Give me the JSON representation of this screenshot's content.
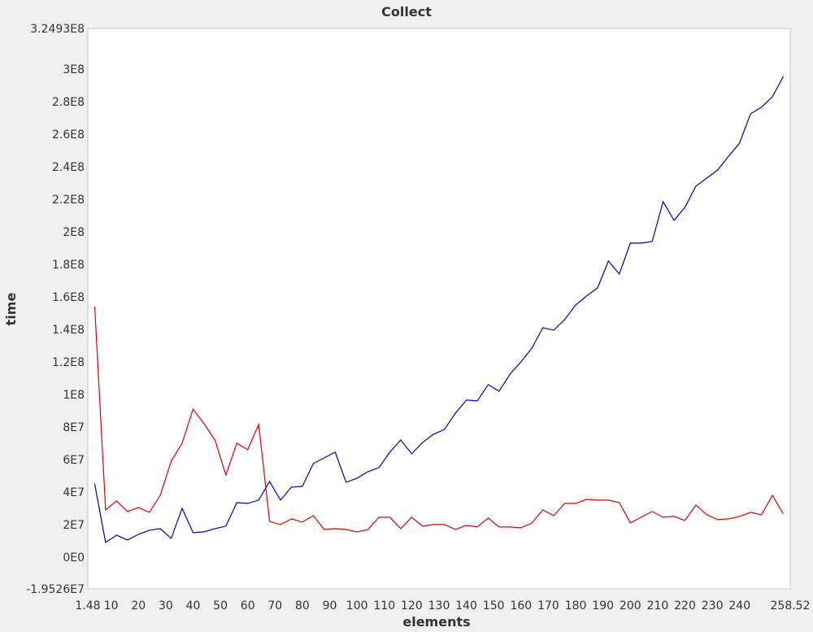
{
  "chart_data": {
    "type": "line",
    "title": "Collect",
    "xlabel": "elements",
    "ylabel": "time",
    "xlim": [
      1.48,
      258.52
    ],
    "ylim": [
      -19526000,
      324930000
    ],
    "x_ticks": [
      1.48,
      10,
      20,
      30,
      40,
      50,
      60,
      70,
      80,
      90,
      100,
      110,
      120,
      130,
      140,
      150,
      160,
      170,
      180,
      190,
      200,
      210,
      220,
      230,
      240,
      258.52
    ],
    "x_tick_labels": [
      "1.48",
      "10",
      "20",
      "30",
      "40",
      "50",
      "60",
      "70",
      "80",
      "90",
      "100",
      "110",
      "120",
      "130",
      "140",
      "150",
      "160",
      "170",
      "180",
      "190",
      "200",
      "210",
      "220",
      "230",
      "240",
      "258.52"
    ],
    "y_ticks": [
      -19526000,
      0,
      20000000,
      40000000,
      60000000,
      80000000,
      100000000,
      120000000,
      140000000,
      160000000,
      180000000,
      200000000,
      220000000,
      240000000,
      260000000,
      280000000,
      300000000,
      324930000
    ],
    "y_tick_labels": [
      "-1.9526E7",
      "0E0",
      "2E7",
      "4E7",
      "6E7",
      "8E7",
      "1E8",
      "1.2E8",
      "1.4E8",
      "1.6E8",
      "1.8E8",
      "2E8",
      "2.2E8",
      "2.4E8",
      "2.6E8",
      "2.8E8",
      "3E8",
      "3.2493E8"
    ],
    "grid": false,
    "series": [
      {
        "color": "#0000b4",
        "points": [
          [
            4,
            45000000
          ],
          [
            8,
            9000000
          ],
          [
            12,
            13500000
          ],
          [
            16,
            10500000
          ],
          [
            20,
            14000000
          ],
          [
            24,
            16500000
          ],
          [
            28,
            17500000
          ],
          [
            32,
            11500000
          ],
          [
            36,
            30000000
          ],
          [
            40,
            15000000
          ],
          [
            44,
            15500000
          ],
          [
            48,
            17500000
          ],
          [
            52,
            19000000
          ],
          [
            56,
            33500000
          ],
          [
            60,
            33000000
          ],
          [
            64,
            35000000
          ],
          [
            68,
            46500000
          ],
          [
            72,
            35000000
          ],
          [
            76,
            43000000
          ],
          [
            80,
            43500000
          ],
          [
            84,
            57500000
          ],
          [
            88,
            61000000
          ],
          [
            92,
            64500000
          ],
          [
            96,
            46000000
          ],
          [
            100,
            48500000
          ],
          [
            104,
            52500000
          ],
          [
            108,
            55000000
          ],
          [
            112,
            64500000
          ],
          [
            116,
            72000000
          ],
          [
            120,
            63500000
          ],
          [
            124,
            70500000
          ],
          [
            128,
            75500000
          ],
          [
            132,
            78500000
          ],
          [
            136,
            88500000
          ],
          [
            140,
            96500000
          ],
          [
            144,
            96000000
          ],
          [
            148,
            106000000
          ],
          [
            152,
            102000000
          ],
          [
            156,
            112500000
          ],
          [
            160,
            120000000
          ],
          [
            164,
            128500000
          ],
          [
            168,
            141000000
          ],
          [
            172,
            139500000
          ],
          [
            176,
            146000000
          ],
          [
            180,
            155000000
          ],
          [
            184,
            160500000
          ],
          [
            188,
            165500000
          ],
          [
            192,
            182000000
          ],
          [
            196,
            174000000
          ],
          [
            200,
            193000000
          ],
          [
            204,
            193000000
          ],
          [
            208,
            194000000
          ],
          [
            212,
            218500000
          ],
          [
            216,
            207000000
          ],
          [
            220,
            215000000
          ],
          [
            224,
            228000000
          ],
          [
            228,
            233000000
          ],
          [
            232,
            238000000
          ],
          [
            236,
            246500000
          ],
          [
            240,
            254500000
          ],
          [
            244,
            272500000
          ],
          [
            248,
            276500000
          ],
          [
            252,
            283000000
          ],
          [
            256,
            295500000
          ]
        ]
      },
      {
        "color": "#dc0000",
        "points": [
          [
            4,
            154000000
          ],
          [
            8,
            29000000
          ],
          [
            12,
            34500000
          ],
          [
            16,
            28000000
          ],
          [
            20,
            30500000
          ],
          [
            24,
            27500000
          ],
          [
            28,
            38000000
          ],
          [
            32,
            59000000
          ],
          [
            36,
            70000000
          ],
          [
            40,
            91000000
          ],
          [
            44,
            82000000
          ],
          [
            48,
            72000000
          ],
          [
            52,
            50500000
          ],
          [
            56,
            70000000
          ],
          [
            60,
            66000000
          ],
          [
            64,
            81500000
          ],
          [
            68,
            22000000
          ],
          [
            72,
            20000000
          ],
          [
            76,
            23500000
          ],
          [
            80,
            21500000
          ],
          [
            84,
            25500000
          ],
          [
            88,
            17000000
          ],
          [
            92,
            17500000
          ],
          [
            96,
            17000000
          ],
          [
            100,
            15500000
          ],
          [
            104,
            17000000
          ],
          [
            108,
            24500000
          ],
          [
            112,
            24500000
          ],
          [
            116,
            17500000
          ],
          [
            120,
            24500000
          ],
          [
            124,
            19000000
          ],
          [
            128,
            20000000
          ],
          [
            132,
            20000000
          ],
          [
            136,
            17000000
          ],
          [
            140,
            19500000
          ],
          [
            144,
            18500000
          ],
          [
            148,
            24000000
          ],
          [
            152,
            18500000
          ],
          [
            156,
            18500000
          ],
          [
            160,
            18000000
          ],
          [
            164,
            21000000
          ],
          [
            168,
            29000000
          ],
          [
            172,
            25500000
          ],
          [
            176,
            33000000
          ],
          [
            180,
            33000000
          ],
          [
            184,
            35500000
          ],
          [
            188,
            35000000
          ],
          [
            192,
            35000000
          ],
          [
            196,
            33500000
          ],
          [
            200,
            21000000
          ],
          [
            204,
            24500000
          ],
          [
            208,
            28000000
          ],
          [
            212,
            24500000
          ],
          [
            216,
            25000000
          ],
          [
            220,
            22500000
          ],
          [
            224,
            32000000
          ],
          [
            228,
            26000000
          ],
          [
            232,
            23000000
          ],
          [
            236,
            23500000
          ],
          [
            240,
            25000000
          ],
          [
            244,
            27500000
          ],
          [
            248,
            26000000
          ],
          [
            252,
            38000000
          ],
          [
            256,
            26500000
          ]
        ]
      }
    ]
  }
}
